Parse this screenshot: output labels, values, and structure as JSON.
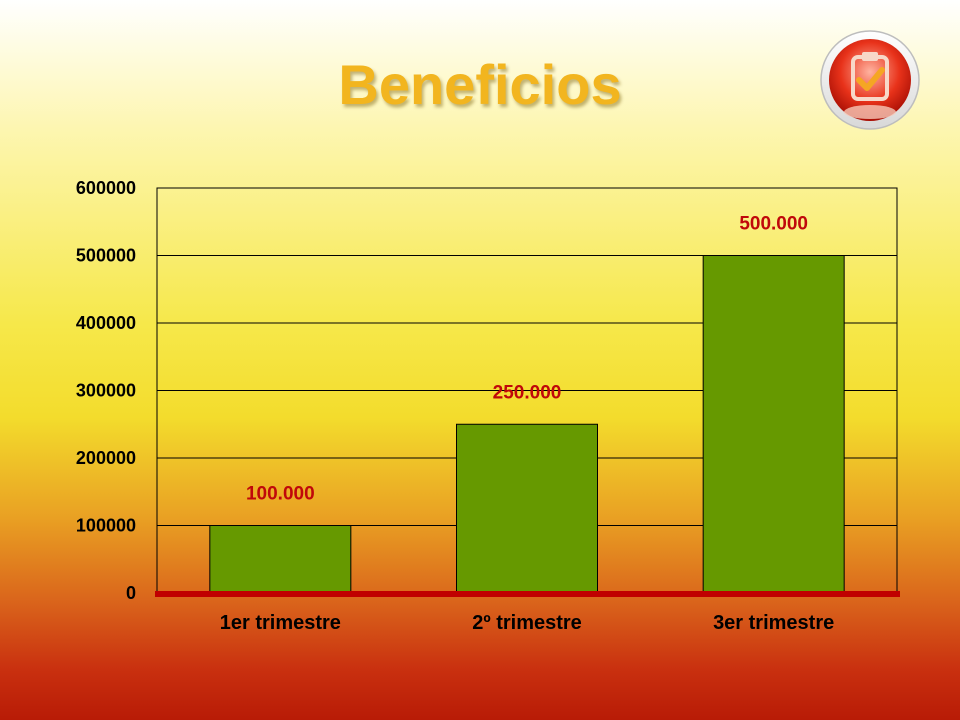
{
  "slide": {
    "title": "Beneficios",
    "logo_icon": "clipboard-check-icon"
  },
  "colors": {
    "title": "#f2b51f",
    "bar": "#669900",
    "data_label": "#c0080a",
    "baseline": "#c00000"
  },
  "chart_data": {
    "type": "bar",
    "title": "Beneficios",
    "categories": [
      "1er trimestre",
      "2º trimestre",
      "3er trimestre"
    ],
    "values": [
      100000,
      250000,
      500000
    ],
    "data_labels": [
      "100.000",
      "250.000",
      "500.000"
    ],
    "yticks": [
      "0",
      "100000",
      "200000",
      "300000",
      "400000",
      "500000",
      "600000"
    ],
    "ylim": [
      0,
      600000
    ],
    "xlabel": "",
    "ylabel": "",
    "grid": true,
    "legend": "none"
  }
}
